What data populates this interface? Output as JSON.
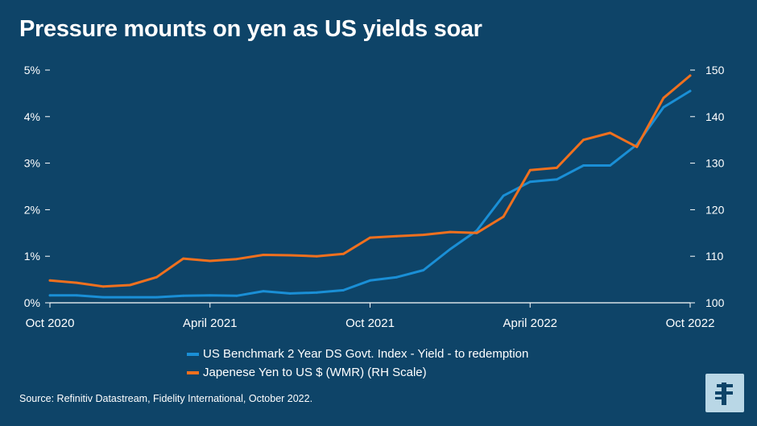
{
  "title": "Pressure mounts on yen as US yields soar",
  "source": "Source: Refinitiv Datastream, Fidelity International, October 2022.",
  "logo_icon": "fidelity-logo-icon",
  "colors": {
    "background": "#0e4468",
    "us_series": "#1a8fd6",
    "yen_series": "#f0701e",
    "axis": "#ffffff",
    "logo_bg": "#b9d7e6",
    "logo_fg": "#0e4468"
  },
  "chart_data": {
    "type": "line",
    "title": "Pressure mounts on yen as US yields soar",
    "x_range": [
      "2020-10",
      "2022-10"
    ],
    "x_ticks": [
      "Oct 2020",
      "April 2021",
      "Oct 2021",
      "April 2022",
      "Oct 2022"
    ],
    "y_left": {
      "range": [
        0,
        5
      ],
      "ticks": [
        "0%",
        "1%",
        "2%",
        "3%",
        "4%",
        "5%"
      ]
    },
    "y_right": {
      "range": [
        100,
        150
      ],
      "ticks": [
        "100",
        "110",
        "120",
        "130",
        "140",
        "150"
      ]
    },
    "grid": false,
    "legend_position": "bottom-center",
    "series": [
      {
        "name": "US Benchmark 2 Year DS Govt. Index - Yield - to redemption",
        "axis": "left",
        "x": [
          "2020-10",
          "2020-11",
          "2020-12",
          "2021-01",
          "2021-02",
          "2021-03",
          "2021-04",
          "2021-05",
          "2021-06",
          "2021-07",
          "2021-08",
          "2021-09",
          "2021-10",
          "2021-11",
          "2021-12",
          "2022-01",
          "2022-02",
          "2022-03",
          "2022-04",
          "2022-05",
          "2022-06",
          "2022-07",
          "2022-08",
          "2022-09",
          "2022-10"
        ],
        "values": [
          0.16,
          0.16,
          0.12,
          0.12,
          0.12,
          0.15,
          0.16,
          0.15,
          0.25,
          0.2,
          0.22,
          0.27,
          0.48,
          0.55,
          0.7,
          1.15,
          1.55,
          2.3,
          2.6,
          2.65,
          2.95,
          2.95,
          3.4,
          4.2,
          4.55
        ]
      },
      {
        "name": "Japenese Yen to US $ (WMR) (RH Scale)",
        "axis": "right",
        "x": [
          "2020-10",
          "2020-11",
          "2020-12",
          "2021-01",
          "2021-02",
          "2021-03",
          "2021-04",
          "2021-05",
          "2021-06",
          "2021-07",
          "2021-08",
          "2021-09",
          "2021-10",
          "2021-11",
          "2021-12",
          "2022-01",
          "2022-02",
          "2022-03",
          "2022-04",
          "2022-05",
          "2022-06",
          "2022-07",
          "2022-08",
          "2022-09",
          "2022-10"
        ],
        "values": [
          104.8,
          104.3,
          103.5,
          103.8,
          105.5,
          109.5,
          109.0,
          109.4,
          110.3,
          110.2,
          110.0,
          110.5,
          114.0,
          114.3,
          114.6,
          115.2,
          115.0,
          118.5,
          128.5,
          129.0,
          135.0,
          136.5,
          133.5,
          144.0,
          148.8
        ]
      }
    ]
  }
}
